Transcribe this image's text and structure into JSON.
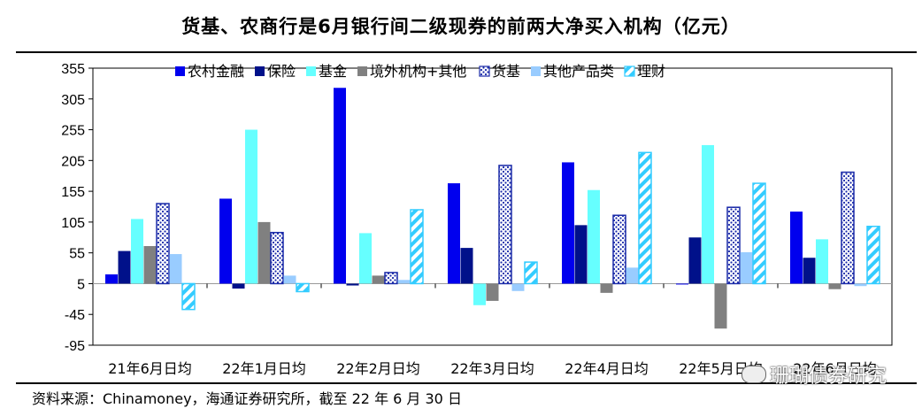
{
  "title": "货基、农商行是6月银行间二级现券的前两大净买入机构（亿元）",
  "source": "资料来源：Chinamoney，海通证券研究所，截至 22 年 6 月 30 日",
  "watermark": "珊瑚债券研究",
  "chart_data": {
    "type": "bar",
    "categories": [
      "21年6月日均",
      "22年1月日均",
      "22年2月日均",
      "22年3月日均",
      "22年4月日均",
      "22年5月日均",
      "22年6月日均"
    ],
    "ylim": [
      -95,
      355
    ],
    "yticks": [
      -95,
      -45,
      5,
      55,
      105,
      155,
      205,
      255,
      305,
      355
    ],
    "legend_position": "top",
    "grid": false,
    "series": [
      {
        "name": "农村金融",
        "color": "#0000ee",
        "pattern": "solid",
        "values": [
          20,
          143,
          323,
          168,
          202,
          5,
          122
        ]
      },
      {
        "name": "保险",
        "color": "#00118a",
        "pattern": "solid",
        "values": [
          58,
          -3,
          2,
          63,
          100,
          80,
          47
        ]
      },
      {
        "name": "基金",
        "color": "#66ffff",
        "pattern": "solid",
        "values": [
          110,
          255,
          87,
          -30,
          157,
          230,
          77
        ]
      },
      {
        "name": "境外机构+其他",
        "color": "#808080",
        "pattern": "solid",
        "values": [
          66,
          105,
          18,
          -23,
          -10,
          -68,
          -4
        ]
      },
      {
        "name": "货基",
        "color": "#1a2aa8",
        "pattern": "dots",
        "values": [
          135,
          88,
          23,
          197,
          116,
          129,
          186
        ]
      },
      {
        "name": "其他产品类",
        "color": "#99ccff",
        "pattern": "solid",
        "values": [
          53,
          18,
          11,
          -7,
          31,
          56,
          1
        ]
      },
      {
        "name": "理财",
        "color": "#33ccff",
        "pattern": "stripes",
        "values": [
          -37,
          -8,
          125,
          40,
          218,
          168,
          98
        ]
      }
    ]
  }
}
